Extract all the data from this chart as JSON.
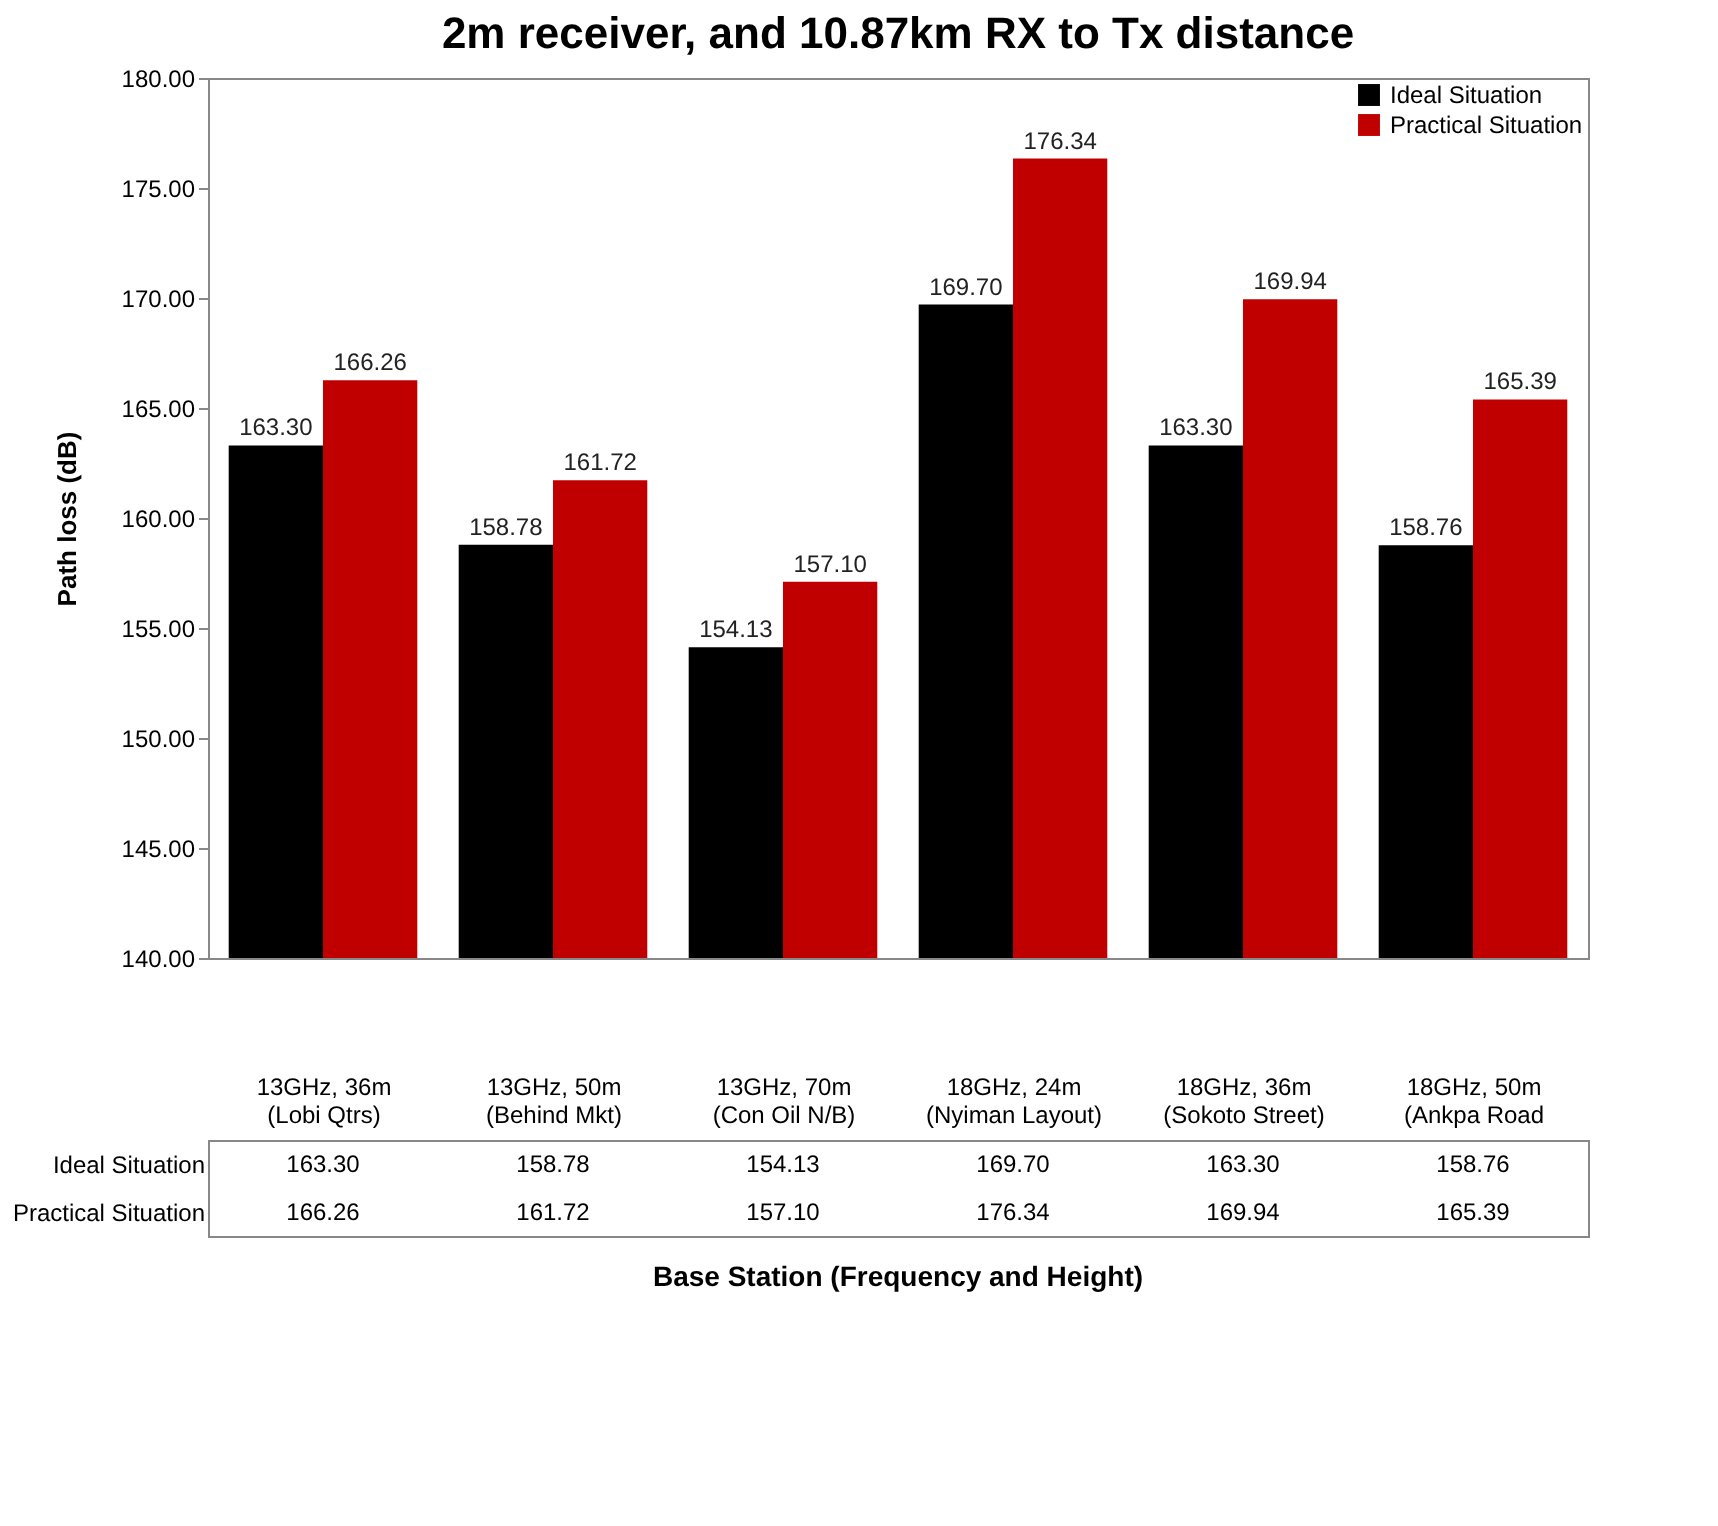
{
  "chart_data": {
    "type": "bar",
    "title": "2m receiver, and 10.87km RX to Tx distance",
    "xlabel": "Base Station (Frequency and Height)",
    "ylabel": "Path loss (dB)",
    "categories": [
      "13GHz, 36m (Lobi Qtrs)",
      "13GHz, 50m (Behind Mkt)",
      "13GHz, 70m (Con Oil N/B)",
      "18GHz, 24m (Nyiman Layout)",
      "18GHz, 36m (Sokoto Street)",
      "18GHz, 50m (Ankpa Road"
    ],
    "series": [
      {
        "name": "Ideal Situation",
        "color": "#000000",
        "values": [
          163.3,
          158.78,
          154.13,
          169.7,
          163.3,
          158.76
        ],
        "value_labels": [
          "163.30",
          "158.78",
          "154.13",
          "169.70",
          "163.30",
          "158.76"
        ]
      },
      {
        "name": "Practical Situation",
        "color": "#c00000",
        "values": [
          166.26,
          161.72,
          157.1,
          176.34,
          169.94,
          165.39
        ],
        "value_labels": [
          "166.26",
          "161.72",
          "157.10",
          "176.34",
          "169.94",
          "165.39"
        ]
      }
    ],
    "ylim": [
      140,
      180
    ],
    "yticks": [
      {
        "value": 140,
        "label": "140.00"
      },
      {
        "value": 145,
        "label": "145.00"
      },
      {
        "value": 150,
        "label": "150.00"
      },
      {
        "value": 155,
        "label": "155.00"
      },
      {
        "value": 160,
        "label": "160.00"
      },
      {
        "value": 165,
        "label": "165.00"
      },
      {
        "value": 170,
        "label": "170.00"
      },
      {
        "value": 175,
        "label": "175.00"
      },
      {
        "value": 180,
        "label": "180.00"
      }
    ],
    "grid": false,
    "legend": "top right"
  }
}
